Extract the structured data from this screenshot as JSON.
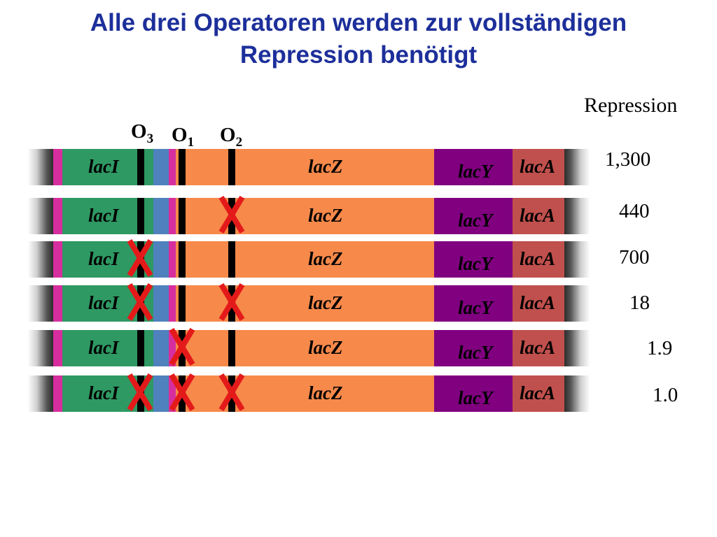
{
  "title": {
    "line1": "Alle drei Operatoren werden zur vollständigen",
    "line2": "Repression benötigt"
  },
  "repression_header": "Repression",
  "operators": [
    {
      "main": "O",
      "sub": "3"
    },
    {
      "main": "O",
      "sub": "1"
    },
    {
      "main": "O",
      "sub": "2"
    }
  ],
  "genes": {
    "laci": "lacI",
    "lacz": "lacZ",
    "lacy": "lacY",
    "laca": "lacA"
  },
  "colors": {
    "title": "#1d2f9a",
    "laci": "#2e9963",
    "lacz": "#f7894a",
    "lacy": "#800080",
    "laca": "#c0504d",
    "magenta": "#d62e9e",
    "blue": "#4f81bd",
    "cross": "#e41a1a"
  },
  "rows": [
    {
      "repression": "1,300",
      "deleted": []
    },
    {
      "repression": "440",
      "deleted": [
        "O2"
      ]
    },
    {
      "repression": "700",
      "deleted": [
        "O3"
      ]
    },
    {
      "repression": "18",
      "deleted": [
        "O3",
        "O2"
      ]
    },
    {
      "repression": "1.9",
      "deleted": [
        "O1"
      ]
    },
    {
      "repression": "1.0",
      "deleted": [
        "O3",
        "O1",
        "O2"
      ]
    }
  ]
}
